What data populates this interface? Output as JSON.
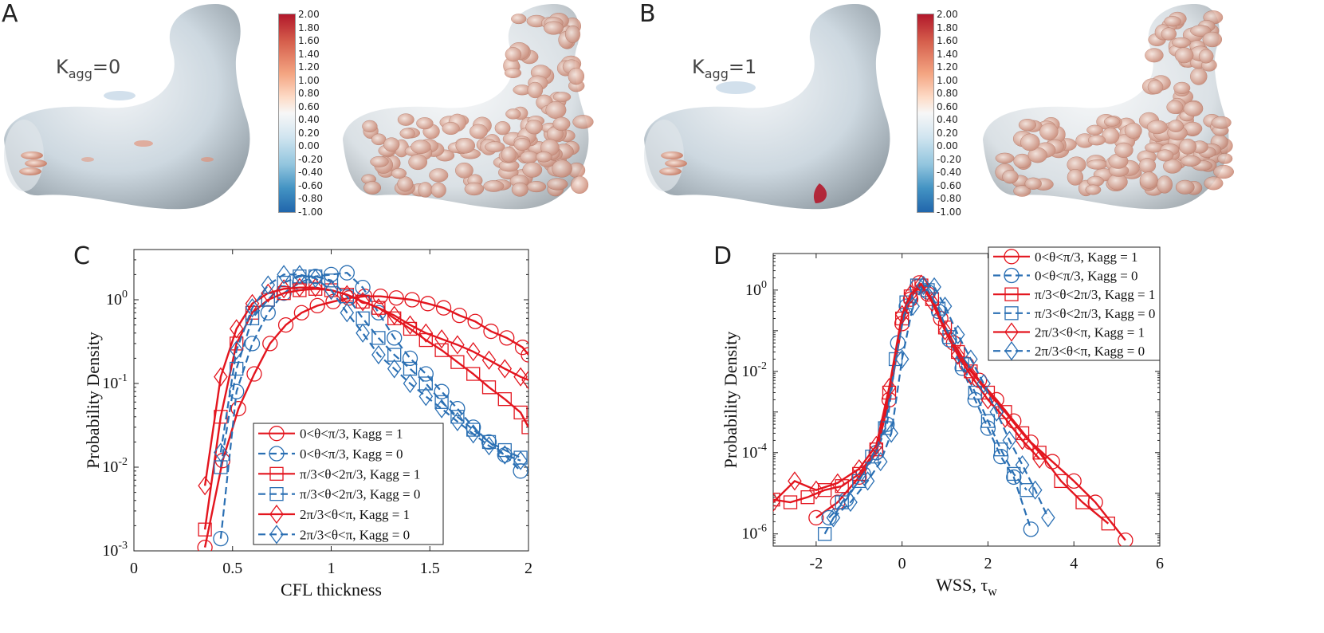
{
  "panels": {
    "A": {
      "letter": "A",
      "kagg_prefix": "K",
      "kagg_sub": "agg",
      "kagg_suffix": "=0"
    },
    "B": {
      "letter": "B",
      "kagg_prefix": "K",
      "kagg_sub": "agg",
      "kagg_suffix": "=1"
    },
    "C": {
      "letter": "C"
    },
    "D": {
      "letter": "D"
    }
  },
  "colorbar_labels": [
    "2.00",
    "1.80",
    "1.60",
    "1.40",
    "1.20",
    "1.00",
    "0.80",
    "0.60",
    "0.40",
    "0.20",
    "0.00",
    "-0.20",
    "-0.40",
    "-0.60",
    "-0.80",
    "-1.00"
  ],
  "colors": {
    "red": "#e3151e",
    "blue": "#2a6fb3",
    "surface": "#cfd8de",
    "rbc": "#d9917a"
  },
  "chart_data": [
    {
      "id": "C",
      "type": "line",
      "xlabel": "CFL thickness",
      "ylabel": "Probability Density",
      "xlim": [
        0,
        2
      ],
      "ylim_log10": [
        -3,
        0.6
      ],
      "xticks": [
        "0",
        "0.5",
        "1",
        "1.5",
        "2"
      ],
      "xtick_values": [
        0,
        0.5,
        1,
        1.5,
        2
      ],
      "yticks": [
        {
          "base": "10",
          "exp": "-3",
          "v": -3
        },
        {
          "base": "10",
          "exp": "-2",
          "v": -2
        },
        {
          "base": "10",
          "exp": "-1",
          "v": -1
        },
        {
          "base": "10",
          "exp": "0",
          "v": 0
        }
      ],
      "legend_position": "bottom-center",
      "series": [
        {
          "name": "0<θ<π/3, Kagg = 1",
          "color": "red",
          "dash": false,
          "marker": "circle",
          "x": [
            0.36,
            0.45,
            0.53,
            0.61,
            0.69,
            0.77,
            0.85,
            0.93,
            1.01,
            1.09,
            1.17,
            1.25,
            1.33,
            1.41,
            1.49,
            1.57,
            1.65,
            1.73,
            1.81,
            1.89,
            1.97,
            2.0
          ],
          "y": [
            0.0011,
            0.012,
            0.05,
            0.13,
            0.3,
            0.5,
            0.7,
            0.85,
            0.95,
            1.05,
            1.1,
            1.1,
            1.05,
            1.0,
            0.9,
            0.8,
            0.65,
            0.55,
            0.42,
            0.35,
            0.27,
            0.22
          ]
        },
        {
          "name": "0<θ<π/3, Kagg = 0",
          "color": "blue",
          "dash": true,
          "marker": "circle",
          "x": [
            0.44,
            0.52,
            0.6,
            0.68,
            0.76,
            0.84,
            0.92,
            1.0,
            1.08,
            1.16,
            1.24,
            1.32,
            1.4,
            1.48,
            1.56,
            1.64,
            1.72,
            1.8,
            1.88,
            1.96
          ],
          "y": [
            0.0014,
            0.08,
            0.3,
            0.7,
            1.2,
            1.6,
            1.9,
            2.0,
            2.1,
            1.4,
            0.7,
            0.35,
            0.2,
            0.13,
            0.08,
            0.05,
            0.03,
            0.02,
            0.014,
            0.009
          ]
        },
        {
          "name": "π/3<θ<2π/3, Kagg = 1",
          "color": "red",
          "dash": false,
          "marker": "square",
          "x": [
            0.36,
            0.44,
            0.52,
            0.6,
            0.68,
            0.76,
            0.84,
            0.92,
            1.0,
            1.08,
            1.16,
            1.24,
            1.32,
            1.4,
            1.48,
            1.56,
            1.64,
            1.72,
            1.8,
            1.88,
            1.96,
            2.0
          ],
          "y": [
            0.0018,
            0.04,
            0.3,
            0.7,
            1.0,
            1.2,
            1.3,
            1.35,
            1.3,
            1.15,
            0.95,
            0.8,
            0.6,
            0.45,
            0.33,
            0.25,
            0.18,
            0.13,
            0.09,
            0.065,
            0.045,
            0.03
          ]
        },
        {
          "name": "π/3<θ<2π/3, Kagg = 0",
          "color": "blue",
          "dash": true,
          "marker": "square",
          "x": [
            0.44,
            0.52,
            0.6,
            0.68,
            0.76,
            0.84,
            0.92,
            1.0,
            1.08,
            1.16,
            1.24,
            1.32,
            1.4,
            1.48,
            1.56,
            1.64,
            1.72,
            1.8,
            1.88,
            1.96
          ],
          "y": [
            0.01,
            0.15,
            0.6,
            1.0,
            1.6,
            1.9,
            1.9,
            1.7,
            1.1,
            0.6,
            0.35,
            0.22,
            0.15,
            0.1,
            0.06,
            0.04,
            0.028,
            0.02,
            0.016,
            0.013
          ]
        },
        {
          "name": "2π/3<θ<π, Kagg = 1",
          "color": "red",
          "dash": false,
          "marker": "diamond",
          "x": [
            0.36,
            0.44,
            0.52,
            0.6,
            0.68,
            0.76,
            0.84,
            0.92,
            1.0,
            1.08,
            1.16,
            1.24,
            1.32,
            1.4,
            1.48,
            1.56,
            1.64,
            1.72,
            1.8,
            1.88,
            1.96,
            2.0
          ],
          "y": [
            0.006,
            0.12,
            0.45,
            0.9,
            1.2,
            1.35,
            1.4,
            1.4,
            1.3,
            1.15,
            0.95,
            0.8,
            0.65,
            0.5,
            0.4,
            0.34,
            0.29,
            0.24,
            0.19,
            0.15,
            0.12,
            0.11
          ]
        },
        {
          "name": "2π/3<θ<π, Kagg = 0",
          "color": "blue",
          "dash": true,
          "marker": "diamond",
          "x": [
            0.44,
            0.52,
            0.6,
            0.68,
            0.76,
            0.84,
            0.92,
            1.0,
            1.08,
            1.16,
            1.24,
            1.32,
            1.4,
            1.48,
            1.56,
            1.64,
            1.72,
            1.8,
            1.88,
            1.96
          ],
          "y": [
            0.015,
            0.25,
            0.8,
            1.5,
            2.0,
            2.0,
            1.8,
            1.3,
            0.7,
            0.4,
            0.22,
            0.15,
            0.1,
            0.07,
            0.05,
            0.035,
            0.025,
            0.018,
            0.014,
            0.012
          ]
        }
      ]
    },
    {
      "id": "D",
      "type": "line",
      "xlabel": "WSS, τ",
      "xlabel_sub": "w",
      "ylabel": "Probability Density",
      "xlim": [
        -3,
        6
      ],
      "ylim_log10": [
        -6.3,
        0.9
      ],
      "xticks": [
        "-2",
        "0",
        "2",
        "4",
        "6"
      ],
      "xtick_values": [
        -2,
        0,
        2,
        4,
        6
      ],
      "yticks": [
        {
          "base": "10",
          "exp": "-6",
          "v": -6
        },
        {
          "base": "10",
          "exp": "-4",
          "v": -4
        },
        {
          "base": "10",
          "exp": "-2",
          "v": -2
        },
        {
          "base": "10",
          "exp": "0",
          "v": 0
        }
      ],
      "legend_position": "top-right",
      "series": [
        {
          "name": "0<θ<π/3, Kagg = 1",
          "color": "red",
          "dash": false,
          "marker": "circle",
          "x": [
            -2.0,
            -1.5,
            -1.0,
            -0.6,
            -0.3,
            0.0,
            0.2,
            0.4,
            0.6,
            0.9,
            1.2,
            1.5,
            1.8,
            2.2,
            2.6,
            3.0,
            3.5,
            4.0,
            4.5,
            5.2
          ],
          "y": [
            2.5e-06,
            6e-06,
            2.5e-05,
            0.0001,
            0.002,
            0.15,
            0.6,
            1.5,
            0.8,
            0.2,
            0.05,
            0.015,
            0.006,
            0.002,
            0.0006,
            0.00018,
            6e-05,
            2e-05,
            6e-06,
            7e-07
          ]
        },
        {
          "name": "0<θ<π/3, Kagg = 0",
          "color": "blue",
          "dash": true,
          "marker": "circle",
          "x": [
            -1.7,
            -1.3,
            -0.9,
            -0.6,
            -0.35,
            -0.1,
            0.1,
            0.35,
            0.6,
            0.85,
            1.1,
            1.4,
            1.7,
            2.0,
            2.3,
            2.6,
            3.0
          ],
          "y": [
            2.5e-06,
            7e-06,
            3e-05,
            0.0001,
            0.0005,
            0.05,
            0.4,
            1.2,
            0.9,
            0.3,
            0.06,
            0.012,
            0.002,
            0.0004,
            8e-05,
            2.5e-05,
            1.3e-06
          ]
        },
        {
          "name": "π/3<θ<2π/3, Kagg = 1",
          "color": "red",
          "dash": false,
          "marker": "square",
          "x": [
            -3.0,
            -2.6,
            -2.2,
            -1.8,
            -1.4,
            -1.0,
            -0.6,
            -0.3,
            0.0,
            0.2,
            0.45,
            0.7,
            1.0,
            1.3,
            1.6,
            2.0,
            2.4,
            2.8,
            3.2,
            3.7,
            4.2,
            4.8
          ],
          "y": [
            7e-06,
            6e-06,
            8e-06,
            1.2e-05,
            1.5e-05,
            3e-05,
            0.00012,
            0.003,
            0.2,
            0.7,
            1.3,
            0.6,
            0.12,
            0.03,
            0.01,
            0.003,
            0.001,
            0.0003,
            0.0001,
            2e-05,
            6e-06,
            1.8e-06
          ]
        },
        {
          "name": "π/3<θ<2π/3, Kagg = 0",
          "color": "blue",
          "dash": true,
          "marker": "square",
          "x": [
            -1.8,
            -1.4,
            -1.0,
            -0.7,
            -0.4,
            -0.15,
            0.1,
            0.35,
            0.6,
            0.85,
            1.1,
            1.4,
            1.7,
            2.0,
            2.3,
            2.6,
            2.9
          ],
          "y": [
            1e-06,
            6e-06,
            2e-05,
            8e-05,
            0.0004,
            0.02,
            0.5,
            1.3,
            1.0,
            0.35,
            0.07,
            0.015,
            0.003,
            0.0006,
            0.00012,
            3e-05,
            1.2e-05
          ]
        },
        {
          "name": "2π/3<θ<π, Kagg = 1",
          "color": "red",
          "dash": false,
          "marker": "diamond",
          "x": [
            -3.0,
            -2.5,
            -2.0,
            -1.5,
            -1.0,
            -0.6,
            -0.3,
            0.0,
            0.2,
            0.45,
            0.7,
            1.0,
            1.3,
            1.6,
            2.0,
            2.4,
            2.8,
            3.2
          ],
          "y": [
            6e-06,
            2e-05,
            1.2e-05,
            1.8e-05,
            4e-05,
            0.00015,
            0.004,
            0.25,
            0.8,
            1.4,
            0.5,
            0.1,
            0.025,
            0.008,
            0.002,
            0.0007,
            0.0002,
            7e-05
          ]
        },
        {
          "name": "2π/3<θ<π, Kagg = 0",
          "color": "blue",
          "dash": true,
          "marker": "diamond",
          "x": [
            -1.6,
            -1.2,
            -0.8,
            -0.5,
            -0.25,
            0.0,
            0.25,
            0.5,
            0.75,
            1.0,
            1.3,
            1.6,
            1.9,
            2.2,
            2.5,
            2.8,
            3.1,
            3.4
          ],
          "y": [
            2.5e-06,
            6e-06,
            2e-05,
            6e-05,
            0.0003,
            0.02,
            0.4,
            1.3,
            1.2,
            0.4,
            0.08,
            0.02,
            0.005,
            0.001,
            0.0002,
            5e-05,
            1.2e-05,
            2.5e-06
          ]
        }
      ]
    }
  ]
}
